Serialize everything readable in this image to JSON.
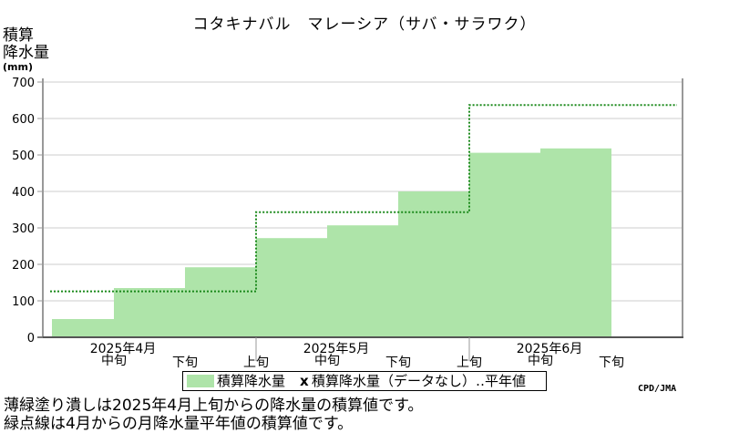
{
  "title": "コタキナバル　マレーシア（サバ・サラワク）",
  "ylabel_lines": [
    "積算",
    "降水量"
  ],
  "yunit": "(mm)",
  "legend": {
    "bar": "積算降水量",
    "missing_marker": "x",
    "missing_and_normal": "積算降水量（データなし）",
    "normal_suffix": "平年値",
    "normal_label": "積算降水量（データなし）‥平年値"
  },
  "source": "CPD/JMA",
  "notes": [
    "薄緑塗り潰しは2025年4月上旬からの降水量の積算値です。",
    "緑点線は4月からの月降水量平年値の積算値です。"
  ],
  "colors": {
    "bar": "#aee4a9",
    "normal_line": "#1c8a1c",
    "grid": "#cccccc",
    "axis": "#999999"
  },
  "chart_data": {
    "type": "area",
    "title": "コタキナバル　マレーシア（サバ・サラワク）",
    "ylabel": "積算降水量 (mm)",
    "ylim": [
      0,
      700
    ],
    "yticks": [
      0,
      100,
      200,
      300,
      400,
      500,
      600,
      700
    ],
    "grid": true,
    "legend_position": "bottom",
    "x_periods": [
      "4月上旬",
      "4月中旬",
      "4月下旬",
      "5月上旬",
      "5月中旬",
      "5月下旬",
      "6月上旬",
      "6月中旬",
      "6月下旬"
    ],
    "x_tick_labels": [
      "中旬",
      "下旬",
      "上旬",
      "中旬",
      "下旬",
      "上旬",
      "中旬",
      "下旬"
    ],
    "month_labels": [
      "2025年4月",
      "2025年5月",
      "2025年6月"
    ],
    "series": [
      {
        "name": "積算降水量",
        "style": "step-area",
        "values": [
          50,
          135,
          192,
          272,
          307,
          400,
          506,
          518,
          null
        ]
      },
      {
        "name": "平年値",
        "style": "dotted-step",
        "month_values": [
          126,
          343,
          637
        ]
      }
    ]
  }
}
